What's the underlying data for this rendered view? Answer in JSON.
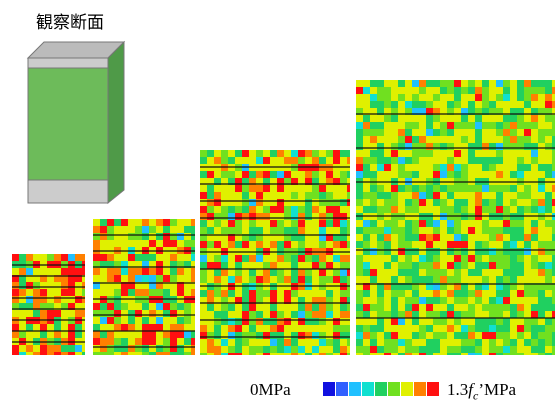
{
  "caption": "観察断面",
  "legend": {
    "min_label": "0MPa",
    "max_label": {
      "number": "1.3",
      "symbol": "f",
      "subscript": "c",
      "suffix": "’MPa"
    },
    "colors": [
      "#1010e0",
      "#3060ff",
      "#20c0ff",
      "#10e0d0",
      "#20d060",
      "#70e020",
      "#e0f000",
      "#ff8000",
      "#ff1010"
    ]
  }
}
